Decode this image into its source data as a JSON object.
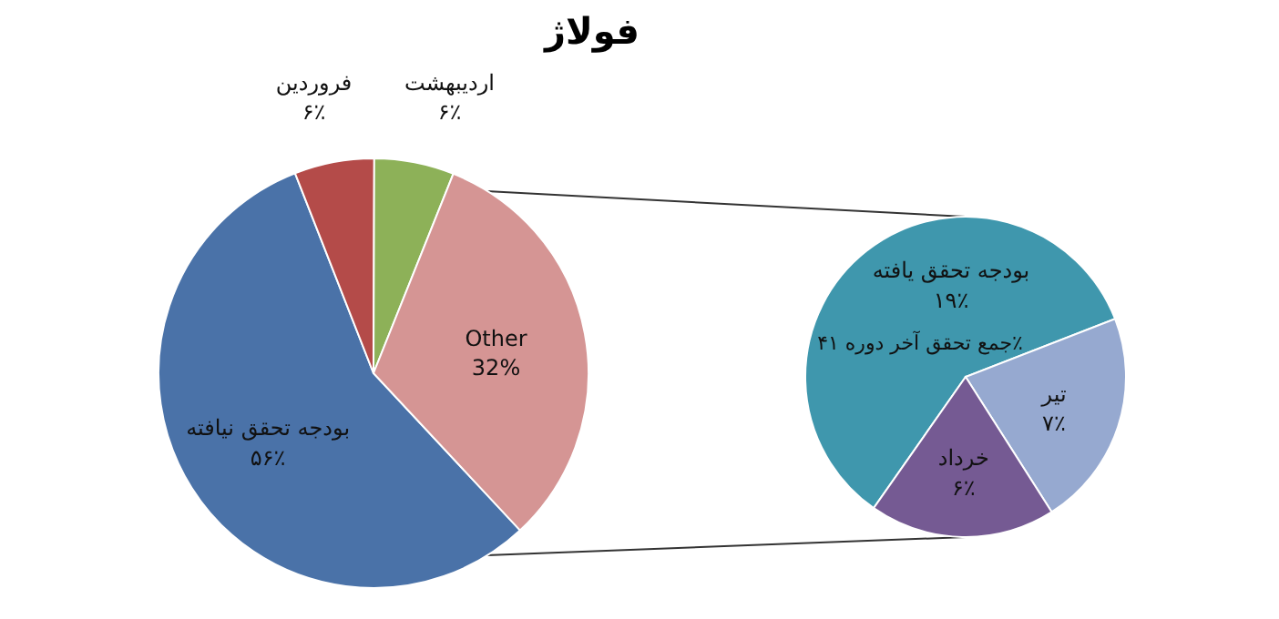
{
  "chart_data": [
    {
      "type": "pie",
      "title": "فولاژ",
      "categories": [
        "بودجه تحقق نیافته",
        "فروردین",
        "اردیبهشت",
        "Other"
      ],
      "values": [
        56,
        6,
        6,
        32
      ],
      "colors": [
        "#4a72a8",
        "#b44b49",
        "#8db158",
        "#d59594"
      ],
      "value_labels": [
        "۵۶٪",
        "۶٪",
        "۶٪",
        "32%"
      ]
    },
    {
      "type": "pie",
      "categories": [
        "بودجه تحقق یافته",
        "تیر",
        "خرداد"
      ],
      "values": [
        19,
        7,
        6
      ],
      "colors": [
        "#3f97ad",
        "#96a9d0",
        "#755a93"
      ],
      "value_labels": [
        "۱۹٪",
        "۷٪",
        "۶٪"
      ],
      "annotations": [
        "جمع تحقق آخر دوره ۴۱٪"
      ]
    }
  ]
}
